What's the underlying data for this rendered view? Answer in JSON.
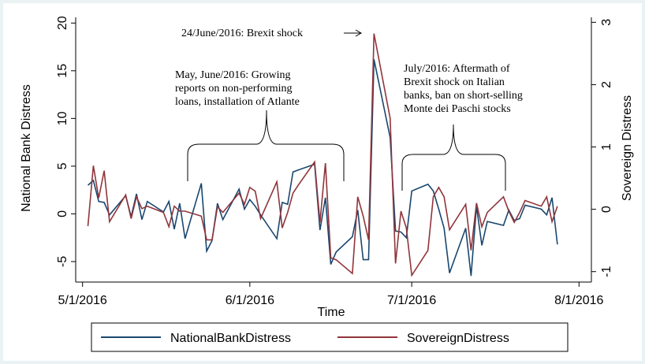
{
  "chart_data": {
    "type": "line",
    "x_label": "Time",
    "y_label": "National Bank Distress",
    "y2_label": "Sovereign Distress",
    "x": [
      "2016-05-02",
      "2016-05-03",
      "2016-05-04",
      "2016-05-05",
      "2016-05-06",
      "2016-05-09",
      "2016-05-10",
      "2016-05-11",
      "2016-05-12",
      "2016-05-13",
      "2016-05-16",
      "2016-05-17",
      "2016-05-18",
      "2016-05-19",
      "2016-05-20",
      "2016-05-23",
      "2016-05-24",
      "2016-05-25",
      "2016-05-26",
      "2016-05-27",
      "2016-05-30",
      "2016-05-31",
      "2016-06-01",
      "2016-06-02",
      "2016-06-03",
      "2016-06-06",
      "2016-06-07",
      "2016-06-08",
      "2016-06-09",
      "2016-06-10",
      "2016-06-13",
      "2016-06-14",
      "2016-06-15",
      "2016-06-16",
      "2016-06-17",
      "2016-06-20",
      "2016-06-21",
      "2016-06-22",
      "2016-06-23",
      "2016-06-24",
      "2016-06-27",
      "2016-06-28",
      "2016-06-29",
      "2016-06-30",
      "2016-07-01",
      "2016-07-04",
      "2016-07-05",
      "2016-07-06",
      "2016-07-07",
      "2016-07-08",
      "2016-07-11",
      "2016-07-12",
      "2016-07-13",
      "2016-07-14",
      "2016-07-15",
      "2016-07-18",
      "2016-07-19",
      "2016-07-20",
      "2016-07-21",
      "2016-07-22",
      "2016-07-25",
      "2016-07-26",
      "2016-07-27",
      "2016-07-28"
    ],
    "series": [
      {
        "name": "NationalBankDistress",
        "color": "#1a476f",
        "axis": "y",
        "values": [
          3.0,
          3.5,
          1.3,
          1.2,
          -0.1,
          1.9,
          -0.3,
          2.1,
          -0.6,
          1.3,
          0.2,
          1.3,
          -1.6,
          1.1,
          -2.6,
          3.2,
          -3.9,
          -2.8,
          1.1,
          -0.6,
          2.6,
          0.5,
          1.5,
          0.8,
          -0.1,
          -2.6,
          1.2,
          1.0,
          4.4,
          4.6,
          5.2,
          -1.7,
          1.7,
          -5.3,
          -4.0,
          -2.4,
          0.4,
          -4.8,
          -4.8,
          16.2,
          8.0,
          -1.8,
          -1.9,
          -2.5,
          2.4,
          3.1,
          2.4,
          0.5,
          -1.5,
          -6.2,
          -1.5,
          -6.5,
          0.8,
          -3.3,
          -0.8,
          -1.2,
          0.4,
          -0.7,
          -0.5,
          0.9,
          0.5,
          -0.1,
          1.7,
          -3.2
        ]
      },
      {
        "name": "SovereignDistress",
        "color": "#90353b",
        "axis": "y2",
        "values": [
          -0.27,
          0.7,
          0.18,
          0.62,
          -0.2,
          0.23,
          -0.15,
          0.2,
          0.01,
          0.05,
          -0.05,
          -0.28,
          0.05,
          -0.03,
          -0.03,
          -0.11,
          -0.49,
          -0.49,
          0.04,
          -0.05,
          0.26,
          0.08,
          0.35,
          0.29,
          -0.15,
          0.44,
          -0.3,
          -0.05,
          0.26,
          0.39,
          0.76,
          -0.21,
          0.74,
          -0.78,
          -0.81,
          -1.03,
          0.2,
          -0.11,
          -0.49,
          2.82,
          1.46,
          -0.87,
          -0.03,
          -0.3,
          -1.06,
          -0.66,
          0.2,
          0.35,
          0.2,
          -0.33,
          0.08,
          -0.66,
          0.1,
          -0.28,
          -0.05,
          0.2,
          -0.03,
          -0.21,
          -0.05,
          0.14,
          0.05,
          0.2,
          -0.2,
          0.05
        ]
      }
    ],
    "xlim": [
      "2016-04-29",
      "2016-08-03"
    ],
    "xticks": [
      {
        "value": "2016-05-01",
        "label": "5/1/2016"
      },
      {
        "value": "2016-06-01",
        "label": "6/1/2016"
      },
      {
        "value": "2016-07-01",
        "label": "7/1/2016"
      },
      {
        "value": "2016-08-01",
        "label": "8/1/2016"
      }
    ],
    "ylim": [
      -6.9,
      20.6
    ],
    "yticks": [
      -5,
      0,
      5,
      10,
      15,
      20
    ],
    "y2lim": [
      -1.13,
      3.08
    ],
    "y2ticks": [
      -1,
      0,
      1,
      2,
      3
    ],
    "grid": false,
    "legend": "bottom",
    "annotations": [
      {
        "lines": [
          "24/June/2016: Brexit shock"
        ]
      },
      {
        "lines": [
          "May, June/2016: Growing",
          "reports on non-performing",
          "loans, installation of Atlante"
        ]
      },
      {
        "lines": [
          "July/2016: Aftermath of",
          "Brexit shock on Italian",
          "banks, ban on short-selling",
          "Monte dei Paschi  stocks"
        ]
      }
    ]
  }
}
